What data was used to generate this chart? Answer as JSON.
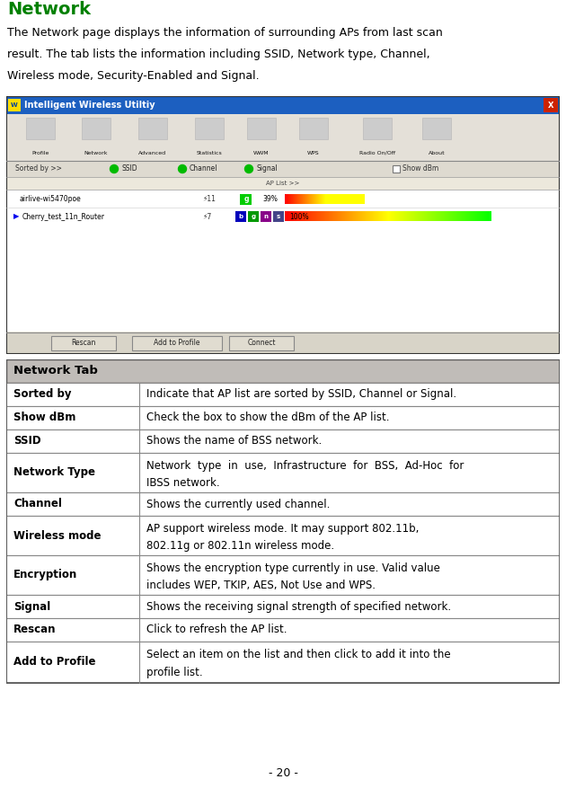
{
  "title": "Network",
  "title_color": "#008000",
  "intro_text_line1": "The Network page displays the information of surrounding APs from last scan",
  "intro_text_line2": "result. The tab lists the information including SSID, Network type, Channel,",
  "intro_text_line3": "Wireless mode, Security-Enabled and Signal.",
  "screenshot_title": "Intelligent Wireless Utiltiy",
  "tab_labels": [
    "Profile",
    "Network",
    "Advanced",
    "Statistics",
    "WWM",
    "WPS",
    "Radio On/Off",
    "About"
  ],
  "ap_list_label": "AP List >>",
  "ap1_name": "airlive-wi5470poe",
  "ap1_channel": "11",
  "ap1_signal_pct": "39%",
  "ap2_name": "Cherry_test_11n_Router",
  "ap2_channel": "7",
  "ap2_signal_pct": "100%",
  "bottom_buttons": [
    "Rescan",
    "Add to Profile",
    "Connect"
  ],
  "table_header_text": "Network Tab",
  "table_rows": [
    [
      "Sorted by",
      "Indicate that AP list are sorted by SSID, Channel or Signal."
    ],
    [
      "Show dBm",
      "Check the box to show the dBm of the AP list."
    ],
    [
      "SSID",
      "Shows the name of BSS network."
    ],
    [
      "Network Type",
      "Network  type  in  use,  Infrastructure  for  BSS,  Ad-Hoc  for\nIBSS network."
    ],
    [
      "Channel",
      "Shows the currently used channel."
    ],
    [
      "Wireless mode",
      "AP support wireless mode. It may support 802.11b,\n802.11g or 802.11n wireless mode."
    ],
    [
      "Encryption",
      "Shows the encryption type currently in use. Valid value\nincludes WEP, TKIP, AES, Not Use and WPS."
    ],
    [
      "Signal",
      "Shows the receiving signal strength of specified network."
    ],
    [
      "Rescan",
      "Click to refresh the AP list."
    ],
    [
      "Add to Profile",
      "Select an item on the list and then click to add it into the\nprofile list."
    ]
  ],
  "footer_text": "- 20 -",
  "win_titlebar_color": "#1c5fc0",
  "win_close_color": "#cc2200",
  "win_bg": "#ece8dc",
  "list_bg": "#ffffff"
}
